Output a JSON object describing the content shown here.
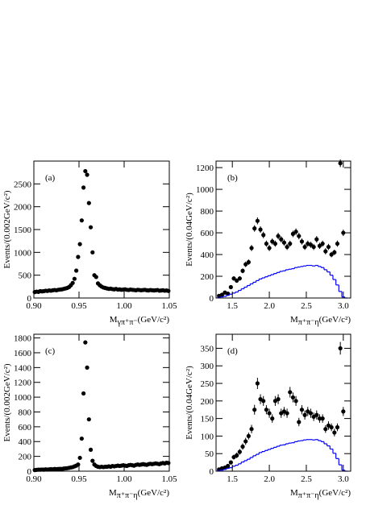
{
  "chart_data": [
    {
      "type": "scatter",
      "label": "(a)",
      "x_label": {
        "main": "M",
        "sub": "γπ⁺π⁻",
        "unit": "(GeV/c²)"
      },
      "y_label": "Events/(0.002GeV/c²)",
      "xlim": [
        0.9,
        1.05
      ],
      "ylim": [
        0,
        3000
      ],
      "xticks": [
        {
          "value": 0.9,
          "label": "0.90"
        },
        {
          "value": 0.95,
          "label": "0.95"
        },
        {
          "value": 1.0,
          "label": "1.00"
        },
        {
          "value": 1.05,
          "label": "1.05"
        }
      ],
      "yticks": [
        0,
        500,
        1000,
        1500,
        2000,
        2500
      ],
      "series": [
        {
          "type": "points",
          "color": "#000000",
          "x": [
            0.901,
            0.903,
            0.905,
            0.907,
            0.909,
            0.911,
            0.913,
            0.915,
            0.917,
            0.919,
            0.921,
            0.923,
            0.925,
            0.927,
            0.929,
            0.931,
            0.933,
            0.935,
            0.937,
            0.939,
            0.941,
            0.943,
            0.945,
            0.947,
            0.949,
            0.951,
            0.953,
            0.955,
            0.957,
            0.959,
            0.961,
            0.963,
            0.965,
            0.967,
            0.969,
            0.971,
            0.973,
            0.975,
            0.977,
            0.979,
            0.981,
            0.983,
            0.985,
            0.987,
            0.989,
            0.991,
            0.993,
            0.995,
            0.997,
            0.999,
            1.001,
            1.003,
            1.005,
            1.007,
            1.009,
            1.011,
            1.013,
            1.015,
            1.017,
            1.019,
            1.021,
            1.023,
            1.025,
            1.027,
            1.029,
            1.031,
            1.033,
            1.035,
            1.037,
            1.039,
            1.041,
            1.043,
            1.045,
            1.047,
            1.049
          ],
          "values": [
            130,
            140,
            135,
            150,
            145,
            150,
            160,
            155,
            165,
            160,
            170,
            175,
            170,
            180,
            185,
            190,
            200,
            210,
            220,
            240,
            280,
            330,
            420,
            600,
            900,
            1180,
            1700,
            2420,
            2780,
            2700,
            2080,
            1550,
            1000,
            500,
            460,
            320,
            280,
            250,
            230,
            220,
            210,
            200,
            205,
            195,
            190,
            200,
            185,
            190,
            180,
            185,
            190,
            180,
            175,
            185,
            180,
            175,
            170,
            180,
            175,
            170,
            175,
            180,
            170,
            165,
            175,
            170,
            165,
            170,
            175,
            160,
            165,
            170,
            160,
            165,
            155
          ]
        }
      ]
    },
    {
      "type": "scatter",
      "label": "(b)",
      "x_label": {
        "main": "M",
        "sub": "π⁺π⁻η",
        "unit": "(GeV/c²)"
      },
      "y_label": "Events/(0.04GeV/c²)",
      "xlim": [
        1.28,
        3.1
      ],
      "ylim": [
        0,
        1260
      ],
      "xticks": [
        1.5,
        {
          "value": 2,
          "label": "2.0"
        },
        2.5,
        {
          "value": 3,
          "label": "3.0"
        }
      ],
      "yticks": [
        0,
        200,
        400,
        600,
        800,
        1000,
        1200
      ],
      "series": [
        {
          "type": "points",
          "color": "#000000",
          "x": [
            1.32,
            1.36,
            1.4,
            1.44,
            1.48,
            1.52,
            1.56,
            1.6,
            1.64,
            1.68,
            1.72,
            1.76,
            1.8,
            1.84,
            1.88,
            1.92,
            1.96,
            2.0,
            2.04,
            2.08,
            2.12,
            2.16,
            2.2,
            2.24,
            2.28,
            2.32,
            2.36,
            2.4,
            2.44,
            2.48,
            2.52,
            2.56,
            2.6,
            2.64,
            2.68,
            2.72,
            2.76,
            2.8,
            2.84,
            2.88,
            2.92,
            2.96,
            3.0
          ],
          "values": [
            20,
            30,
            50,
            40,
            100,
            180,
            160,
            180,
            250,
            310,
            330,
            460,
            640,
            710,
            630,
            580,
            500,
            460,
            520,
            500,
            570,
            540,
            510,
            470,
            500,
            590,
            610,
            570,
            520,
            470,
            500,
            490,
            470,
            540,
            480,
            500,
            430,
            470,
            400,
            420,
            500,
            1240,
            600
          ],
          "errors": [
            8,
            10,
            12,
            10,
            15,
            20,
            20,
            20,
            22,
            25,
            25,
            28,
            30,
            32,
            30,
            30,
            28,
            28,
            28,
            28,
            30,
            28,
            28,
            28,
            28,
            30,
            30,
            30,
            28,
            28,
            28,
            28,
            28,
            30,
            28,
            28,
            28,
            28,
            25,
            25,
            28,
            35,
            30
          ]
        },
        {
          "type": "histogram",
          "color": "#0000ff",
          "bins": [
            1.3,
            1.34,
            1.38,
            1.42,
            1.46,
            1.5,
            1.54,
            1.58,
            1.62,
            1.66,
            1.7,
            1.74,
            1.78,
            1.82,
            1.86,
            1.9,
            1.94,
            1.98,
            2.02,
            2.06,
            2.1,
            2.14,
            2.18,
            2.22,
            2.26,
            2.3,
            2.34,
            2.38,
            2.42,
            2.46,
            2.5,
            2.54,
            2.58,
            2.62,
            2.66,
            2.7,
            2.74,
            2.78,
            2.82,
            2.86,
            2.9,
            2.94,
            2.98,
            3.02,
            3.06
          ],
          "counts": [
            5,
            10,
            15,
            25,
            35,
            45,
            55,
            70,
            85,
            100,
            115,
            130,
            145,
            160,
            175,
            185,
            195,
            205,
            215,
            225,
            235,
            245,
            250,
            260,
            265,
            270,
            280,
            285,
            290,
            295,
            300,
            300,
            295,
            300,
            290,
            280,
            260,
            240,
            210,
            170,
            120,
            60,
            10,
            0
          ]
        }
      ]
    },
    {
      "type": "scatter",
      "label": "(c)",
      "x_label": {
        "main": "M",
        "sub": "π⁺π⁻η",
        "unit": "(GeV/c²)"
      },
      "y_label": "Events/(0.002GeV/c²)",
      "xlim": [
        0.9,
        1.05
      ],
      "ylim": [
        0,
        1850
      ],
      "xticks": [
        {
          "value": 0.9,
          "label": "0.90"
        },
        {
          "value": 0.95,
          "label": "0.95"
        },
        {
          "value": 1.0,
          "label": "1.00"
        },
        {
          "value": 1.05,
          "label": "1.05"
        }
      ],
      "yticks": [
        0,
        200,
        400,
        600,
        800,
        1000,
        1200,
        1400,
        1600,
        1800
      ],
      "series": [
        {
          "type": "points",
          "color": "#000000",
          "x": [
            0.901,
            0.903,
            0.905,
            0.907,
            0.909,
            0.911,
            0.913,
            0.915,
            0.917,
            0.919,
            0.921,
            0.923,
            0.925,
            0.927,
            0.929,
            0.931,
            0.933,
            0.935,
            0.937,
            0.939,
            0.941,
            0.943,
            0.945,
            0.947,
            0.949,
            0.951,
            0.953,
            0.955,
            0.957,
            0.959,
            0.961,
            0.963,
            0.965,
            0.967,
            0.969,
            0.971,
            0.973,
            0.975,
            0.977,
            0.979,
            0.981,
            0.983,
            0.985,
            0.987,
            0.989,
            0.991,
            0.993,
            0.995,
            0.997,
            0.999,
            1.001,
            1.003,
            1.005,
            1.007,
            1.009,
            1.011,
            1.013,
            1.015,
            1.017,
            1.019,
            1.021,
            1.023,
            1.025,
            1.027,
            1.029,
            1.031,
            1.033,
            1.035,
            1.037,
            1.039,
            1.041,
            1.043,
            1.045,
            1.047,
            1.049
          ],
          "values": [
            15,
            18,
            20,
            20,
            22,
            20,
            25,
            22,
            25,
            28,
            25,
            30,
            28,
            30,
            32,
            30,
            35,
            38,
            40,
            45,
            50,
            55,
            65,
            75,
            90,
            180,
            440,
            1050,
            1740,
            1400,
            700,
            290,
            140,
            90,
            70,
            60,
            55,
            60,
            55,
            60,
            60,
            65,
            60,
            70,
            65,
            70,
            75,
            70,
            75,
            80,
            75,
            70,
            80,
            85,
            80,
            75,
            85,
            90,
            85,
            90,
            95,
            90,
            85,
            95,
            100,
            95,
            100,
            105,
            100,
            95,
            105,
            110,
            105,
            115,
            110
          ]
        }
      ]
    },
    {
      "type": "scatter",
      "label": "(d)",
      "x_label": {
        "main": "M",
        "sub": "π⁺π⁻η",
        "unit": "(GeV/c²)"
      },
      "y_label": "Events/(0.04GeV/c²)",
      "xlim": [
        1.28,
        3.1
      ],
      "ylim": [
        0,
        390
      ],
      "xticks": [
        1.5,
        {
          "value": 2,
          "label": "2.0"
        },
        2.5,
        {
          "value": 3,
          "label": "3.0"
        }
      ],
      "yticks": [
        0,
        50,
        100,
        150,
        200,
        250,
        300,
        350
      ],
      "series": [
        {
          "type": "points",
          "color": "#000000",
          "x": [
            1.32,
            1.36,
            1.4,
            1.44,
            1.48,
            1.52,
            1.56,
            1.6,
            1.64,
            1.68,
            1.72,
            1.76,
            1.8,
            1.84,
            1.88,
            1.92,
            1.96,
            2.0,
            2.04,
            2.08,
            2.12,
            2.16,
            2.2,
            2.24,
            2.28,
            2.32,
            2.36,
            2.4,
            2.44,
            2.48,
            2.52,
            2.56,
            2.6,
            2.64,
            2.68,
            2.72,
            2.76,
            2.8,
            2.84,
            2.88,
            2.92,
            2.96,
            3.0
          ],
          "values": [
            5,
            8,
            10,
            15,
            25,
            40,
            45,
            55,
            70,
            85,
            100,
            120,
            175,
            250,
            205,
            200,
            175,
            165,
            150,
            200,
            205,
            165,
            170,
            165,
            225,
            210,
            200,
            140,
            175,
            160,
            170,
            165,
            155,
            160,
            150,
            150,
            120,
            130,
            125,
            110,
            125,
            350,
            170
          ],
          "errors": [
            3,
            3,
            4,
            5,
            6,
            7,
            8,
            8,
            9,
            10,
            10,
            12,
            14,
            16,
            14,
            14,
            13,
            13,
            12,
            14,
            14,
            13,
            13,
            13,
            15,
            14,
            14,
            12,
            13,
            13,
            13,
            13,
            12,
            13,
            12,
            12,
            11,
            12,
            11,
            11,
            11,
            18,
            13
          ]
        },
        {
          "type": "histogram",
          "color": "#0000ff",
          "bins": [
            1.3,
            1.34,
            1.38,
            1.42,
            1.46,
            1.5,
            1.54,
            1.58,
            1.62,
            1.66,
            1.7,
            1.74,
            1.78,
            1.82,
            1.86,
            1.9,
            1.94,
            1.98,
            2.02,
            2.06,
            2.1,
            2.14,
            2.18,
            2.22,
            2.26,
            2.3,
            2.34,
            2.38,
            2.42,
            2.46,
            2.5,
            2.54,
            2.58,
            2.62,
            2.66,
            2.7,
            2.74,
            2.78,
            2.82,
            2.86,
            2.9,
            2.94,
            2.98,
            3.02,
            3.06
          ],
          "counts": [
            2,
            3,
            5,
            8,
            10,
            14,
            17,
            21,
            26,
            30,
            34,
            39,
            44,
            48,
            53,
            56,
            59,
            62,
            65,
            68,
            71,
            74,
            75,
            78,
            80,
            81,
            84,
            86,
            87,
            89,
            90,
            90,
            89,
            90,
            87,
            84,
            78,
            72,
            63,
            51,
            36,
            18,
            3,
            0
          ]
        }
      ]
    }
  ]
}
